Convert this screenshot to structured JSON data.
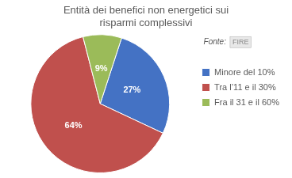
{
  "chart_data": {
    "type": "pie",
    "title": "Entità dei benefici non energetici sui\nrisparmi complessivi",
    "categories": [
      "Minore del 10%",
      "Tra l’11 e il 30%",
      "Fra il 31 e il 60%"
    ],
    "values": [
      27,
      64,
      9
    ],
    "value_labels": [
      "27%",
      "64%",
      "9%"
    ],
    "colors": [
      "#4472C4",
      "#C0504D",
      "#9BBB59"
    ],
    "data_labels": true,
    "legend": "right",
    "annotations": [
      "Fonte:",
      "FIRE"
    ]
  }
}
